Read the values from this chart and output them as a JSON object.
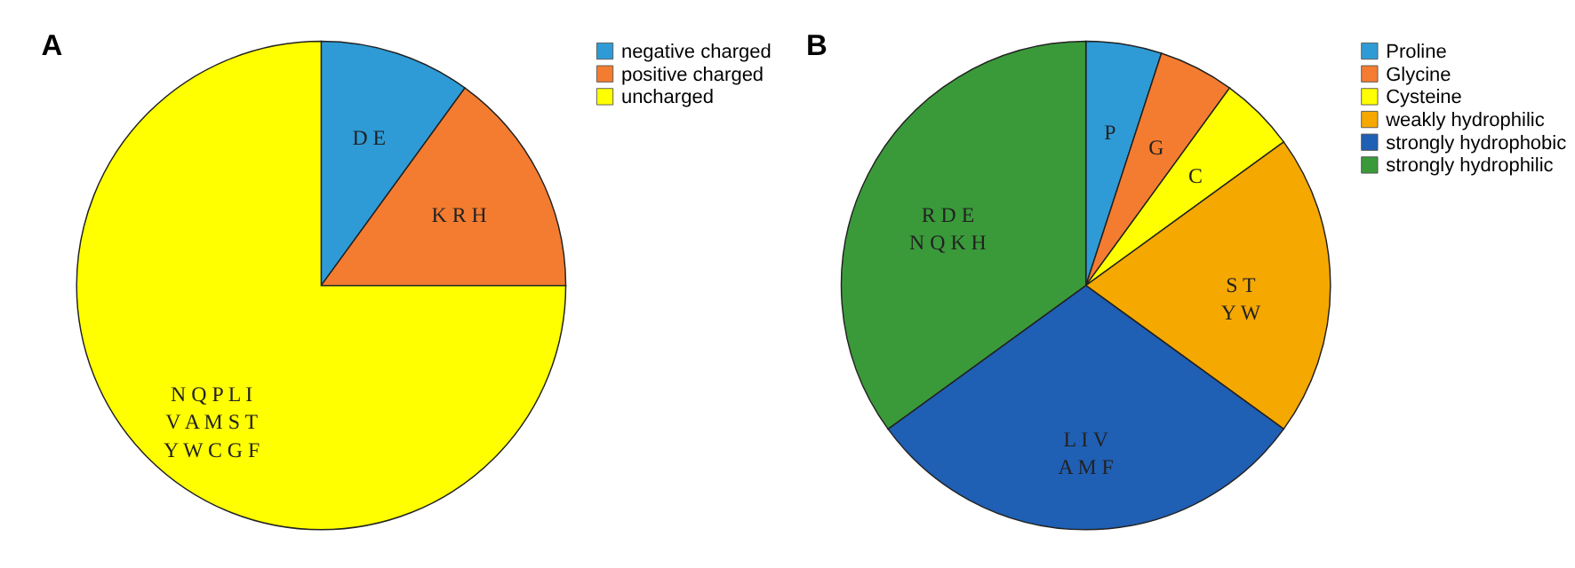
{
  "chart_data": [
    {
      "type": "pie",
      "title": "A",
      "categories": [
        "negative charged",
        "positive charged",
        "uncharged"
      ],
      "values": [
        10,
        15,
        75
      ],
      "colors": [
        "#2e9bd6",
        "#f47c30",
        "#ffff00"
      ],
      "annotations": [
        "D E",
        "K R H",
        "N Q P L I\nV A M S T\nY W C G F"
      ],
      "legend": "right"
    },
    {
      "type": "pie",
      "title": "B",
      "categories": [
        "Proline",
        "Glycine",
        "Cysteine",
        "weakly hydrophilic",
        "strongly hydrophobic",
        "strongly hydrophilic"
      ],
      "values": [
        5,
        5,
        5,
        20,
        30,
        35
      ],
      "colors": [
        "#2e9bd6",
        "#f47c30",
        "#ffff00",
        "#f5a800",
        "#1f5fb4",
        "#3a9a3a"
      ],
      "annotations": [
        "P",
        "G",
        "C",
        "S T\nY W",
        "L I V\nA M F",
        "R D E\nN Q K H"
      ],
      "legend": "right"
    }
  ]
}
